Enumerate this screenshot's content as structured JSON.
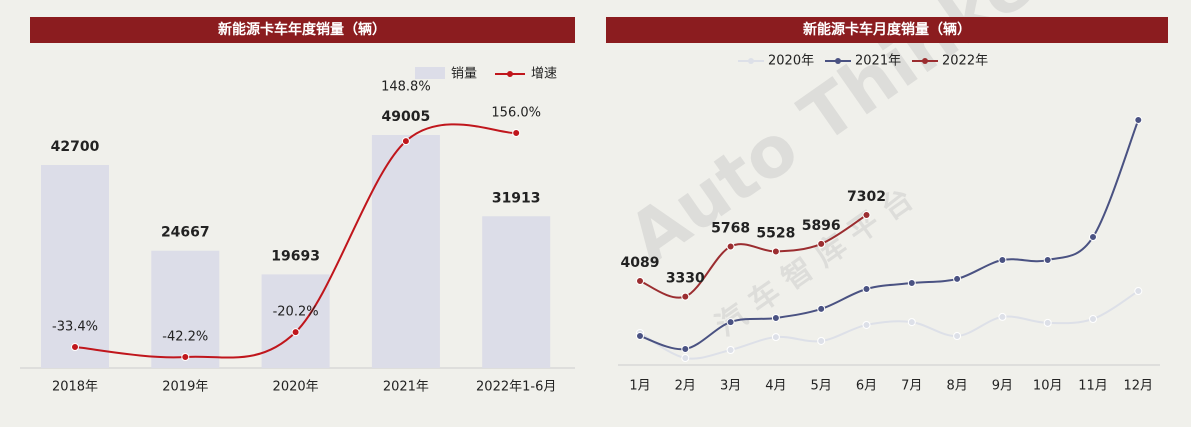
{
  "chart_data": [
    {
      "type": "bar",
      "title": "新能源卡车年度销量（辆）",
      "categories": [
        "2018年",
        "2019年",
        "2020年",
        "2021年",
        "2022年1-6月"
      ],
      "series": [
        {
          "name": "销量",
          "type": "bar",
          "color": "#dcdde8",
          "values": [
            42700,
            24667,
            19693,
            49005,
            31913
          ]
        },
        {
          "name": "增速",
          "type": "line",
          "color": "#c0161c",
          "values": [
            -33.4,
            -42.2,
            -20.2,
            148.8,
            156.0
          ],
          "value_labels": [
            "-33.4%",
            "-42.2%",
            "-20.2%",
            "148.8%",
            "156.0%"
          ]
        }
      ]
    },
    {
      "type": "line",
      "title": "新能源卡车月度销量（辆）",
      "categories": [
        "1月",
        "2月",
        "3月",
        "4月",
        "5月",
        "6月",
        "7月",
        "8月",
        "9月",
        "10月",
        "11月",
        "12月"
      ],
      "series": [
        {
          "name": "2020年",
          "color": "#dde0e8",
          "values": [
            1560,
            340,
            730,
            1360,
            1170,
            1950,
            2090,
            1410,
            2340,
            2050,
            2240,
            3600
          ]
        },
        {
          "name": "2021年",
          "color": "#4a5282",
          "values": [
            1410,
            780,
            2090,
            2290,
            2730,
            3700,
            3990,
            4190,
            5110,
            5110,
            6230,
            11930
          ]
        },
        {
          "name": "2022年",
          "color": "#9b2d30",
          "values": [
            4089,
            3330,
            5768,
            5528,
            5896,
            7302,
            null,
            null,
            null,
            null,
            null,
            null
          ]
        }
      ]
    }
  ],
  "watermark": [
    "Auto Thinker",
    "汽 车 智 库 平 台"
  ]
}
